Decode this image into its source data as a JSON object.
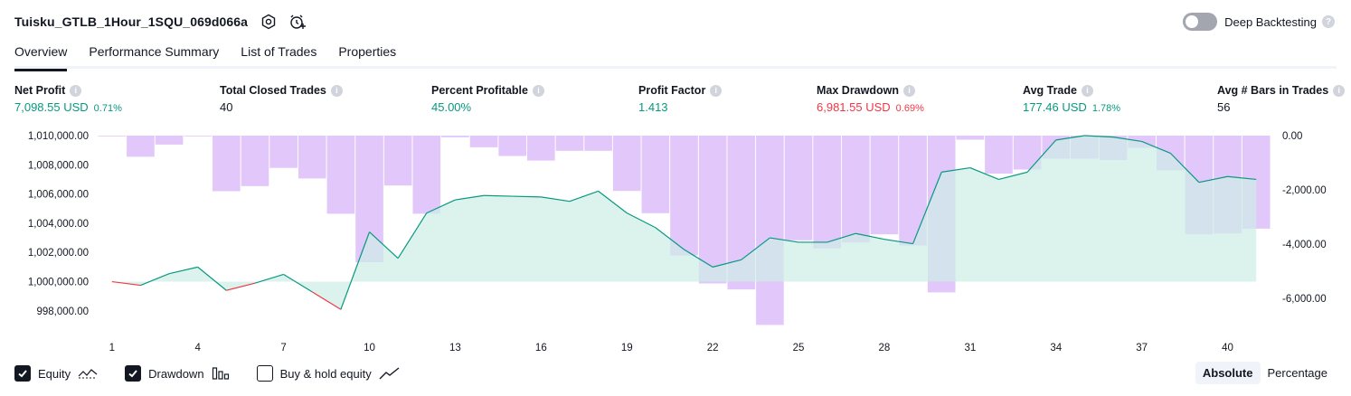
{
  "header": {
    "strategy_name": "Tuisku_GTLB_1Hour_1SQU_069d066a",
    "settings_icon": "gear-icon",
    "alert_icon": "alarm-clock-plus-icon",
    "deep_backtesting_label": "Deep Backtesting",
    "deep_backtesting_enabled": false,
    "help_glyph": "?"
  },
  "tabs": [
    {
      "label": "Overview",
      "active": true
    },
    {
      "label": "Performance Summary",
      "active": false
    },
    {
      "label": "List of Trades",
      "active": false
    },
    {
      "label": "Properties",
      "active": false
    }
  ],
  "metrics": {
    "net_profit": {
      "label": "Net Profit",
      "value": "7,098.55 USD",
      "sub": "0.71%"
    },
    "total_closed_trades": {
      "label": "Total Closed Trades",
      "value": "40"
    },
    "percent_profitable": {
      "label": "Percent Profitable",
      "value": "45.00%"
    },
    "profit_factor": {
      "label": "Profit Factor",
      "value": "1.413"
    },
    "max_drawdown": {
      "label": "Max Drawdown",
      "value": "6,981.55 USD",
      "sub": "0.69%"
    },
    "avg_trade": {
      "label": "Avg Trade",
      "value": "177.46 USD",
      "sub": "1.78%"
    },
    "avg_bars": {
      "label": "Avg # Bars in Trades",
      "value": "56"
    },
    "info_glyph": "i"
  },
  "colors": {
    "positive": "#089981",
    "negative": "#f23645",
    "equity_fill": "#cdeee6",
    "drawdown_bar": "#e0c4fa",
    "text": "#131722"
  },
  "chart_data": {
    "type": "bar+area",
    "x": [
      1,
      2,
      3,
      4,
      5,
      6,
      7,
      8,
      9,
      10,
      11,
      12,
      13,
      14,
      15,
      16,
      17,
      18,
      19,
      20,
      21,
      22,
      23,
      24,
      25,
      26,
      27,
      28,
      29,
      30,
      31,
      32,
      33,
      34,
      35,
      36,
      37,
      38,
      39,
      40,
      41
    ],
    "x_ticks": [
      "1",
      "4",
      "7",
      "10",
      "13",
      "16",
      "19",
      "22",
      "25",
      "28",
      "31",
      "34",
      "37",
      "40"
    ],
    "left_axis": {
      "ticks": [
        "1,010,000.00",
        "1,008,000.00",
        "1,006,000.00",
        "1,004,000.00",
        "1,002,000.00",
        "1,000,000.00",
        "998,000.00"
      ],
      "range": [
        997000,
        1010000
      ]
    },
    "right_axis": {
      "ticks": [
        "0.00",
        "-2,000.00",
        "-4,000.00",
        "-6,000.00"
      ],
      "range": [
        -7000,
        0
      ]
    },
    "series": [
      {
        "name": "Equity",
        "type": "area",
        "axis": "left",
        "baseline": 1000000,
        "values": [
          1000000,
          999750,
          1000550,
          1001000,
          999400,
          999900,
          1000500,
          999300,
          998100,
          1003400,
          1001600,
          1004700,
          1005600,
          1005900,
          1005850,
          1005800,
          1005500,
          1006200,
          1004700,
          1003700,
          1002200,
          1001000,
          1001500,
          1003000,
          1002700,
          1002700,
          1003300,
          1002900,
          1002600,
          1007500,
          1007800,
          1007000,
          1007500,
          1009700,
          1010000,
          1009900,
          1009600,
          1008800,
          1006800,
          1007200,
          1007000
        ]
      },
      {
        "name": "Drawdown",
        "type": "bar",
        "axis": "right",
        "values": [
          0,
          -780,
          -330,
          0,
          -2050,
          -1860,
          -1190,
          -1580,
          -2880,
          -4670,
          -1840,
          -2880,
          -60,
          -430,
          -750,
          -920,
          -560,
          -560,
          -2040,
          -2860,
          -4420,
          -5450,
          -5670,
          -6980,
          -3860,
          -4160,
          -3940,
          -3640,
          -4050,
          -5780,
          -150,
          -1400,
          -1250,
          -850,
          -850,
          -900,
          -450,
          -1280,
          -3640,
          -3610,
          -3430
        ]
      }
    ],
    "legend": [
      {
        "label": "Equity",
        "checked": true,
        "icon": "equity-line-icon"
      },
      {
        "label": "Drawdown",
        "checked": true,
        "icon": "drawdown-bars-icon"
      },
      {
        "label": "Buy & hold equity",
        "checked": false,
        "icon": "buy-hold-line-icon"
      }
    ]
  },
  "view_modes": [
    {
      "label": "Absolute",
      "active": true
    },
    {
      "label": "Percentage",
      "active": false
    }
  ]
}
